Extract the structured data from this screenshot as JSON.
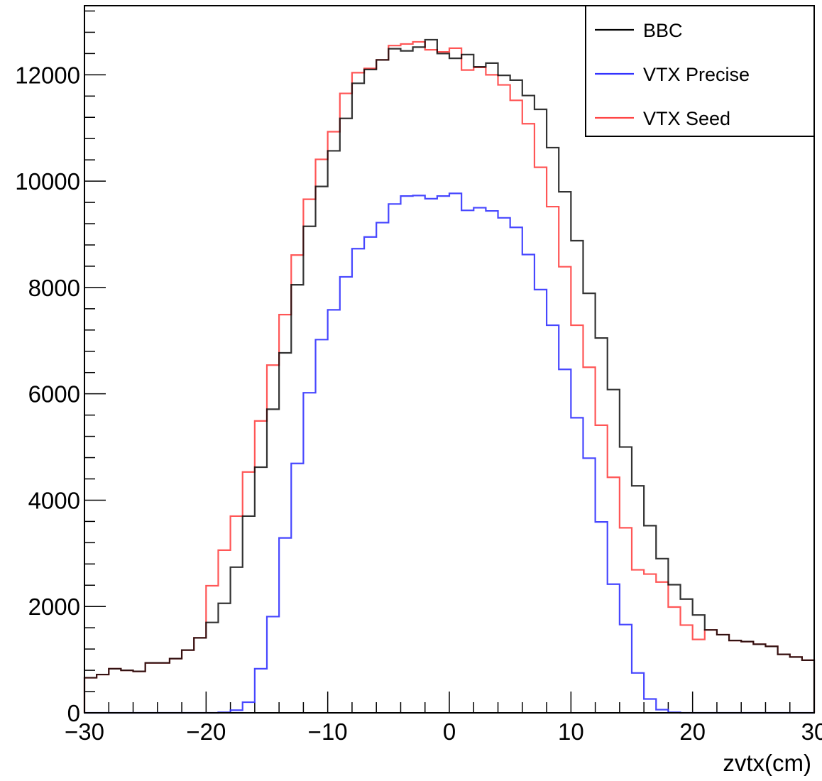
{
  "chart_data": {
    "type": "histogram-step",
    "xlabel": "zvtx(cm)",
    "ylabel": "",
    "xlim": [
      -30,
      30
    ],
    "ylim": [
      0,
      13300
    ],
    "bin_width": 1,
    "x_ticks": [
      -30,
      -20,
      -10,
      0,
      10,
      20,
      30
    ],
    "x_tick_labels": [
      "−30",
      "−20",
      "−10",
      "0",
      "10",
      "20",
      "30"
    ],
    "y_ticks": [
      0,
      2000,
      4000,
      6000,
      8000,
      10000,
      12000
    ],
    "y_tick_labels": [
      "0",
      "2000",
      "4000",
      "6000",
      "8000",
      "10000",
      "12000"
    ],
    "legend_position": "top-right",
    "series": [
      {
        "name": "BBC",
        "color": "#000000",
        "values": [
          660,
          720,
          830,
          800,
          780,
          940,
          940,
          1020,
          1180,
          1410,
          1700,
          2060,
          2740,
          3700,
          4620,
          5710,
          6770,
          8050,
          9150,
          9900,
          10570,
          11180,
          11840,
          12100,
          12280,
          12490,
          12450,
          12520,
          12660,
          12400,
          12310,
          12380,
          12150,
          12220,
          11990,
          11900,
          11610,
          11350,
          10630,
          9800,
          8880,
          7890,
          7050,
          6080,
          5000,
          4270,
          3520,
          2900,
          2410,
          2140,
          1840,
          1560,
          1470,
          1360,
          1340,
          1290,
          1250,
          1100,
          1050,
          990
        ]
      },
      {
        "name": "VTX Precise",
        "color": "#3333ff",
        "values": [
          0,
          0,
          0,
          0,
          0,
          0,
          0,
          0,
          0,
          0,
          0,
          10,
          50,
          200,
          830,
          1810,
          3290,
          4690,
          6020,
          7020,
          7580,
          8200,
          8730,
          8950,
          9220,
          9570,
          9720,
          9730,
          9670,
          9720,
          9770,
          9450,
          9500,
          9440,
          9310,
          9130,
          8620,
          7960,
          7290,
          6460,
          5550,
          4790,
          3590,
          2420,
          1660,
          750,
          260,
          60,
          10,
          0,
          0,
          0,
          0,
          0,
          0,
          0,
          0,
          0,
          0,
          0
        ]
      },
      {
        "name": "VTX Seed",
        "color": "#ff4444",
        "values": [
          660,
          720,
          830,
          800,
          780,
          940,
          940,
          1020,
          1180,
          1410,
          2390,
          3060,
          3700,
          4530,
          5490,
          6540,
          7490,
          8610,
          9660,
          10410,
          10930,
          11650,
          12040,
          12120,
          12280,
          12550,
          12580,
          12620,
          12470,
          12430,
          12500,
          12090,
          12140,
          12000,
          11810,
          11520,
          11080,
          10260,
          9520,
          8390,
          7290,
          6500,
          5410,
          4430,
          3480,
          2690,
          2610,
          2460,
          1990,
          1650,
          1380,
          1560,
          1470,
          1360,
          1340,
          1290,
          1250,
          1100,
          1050,
          990
        ]
      }
    ],
    "series_draw_order": [
      1,
      2,
      0
    ]
  }
}
